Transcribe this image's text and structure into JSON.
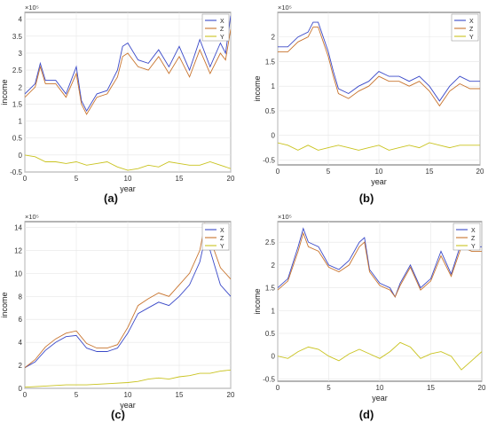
{
  "palette": {
    "X": "#3a49c8",
    "Z": "#c8742e",
    "Y": "#c9c31f",
    "grid": "#e6e6e6",
    "axis": "#444444"
  },
  "chart_data": [
    {
      "type": "line",
      "panel_label": "(a)",
      "xlabel": "year",
      "ylabel": "income",
      "exponent_label": "×10⁵",
      "xlim": [
        0,
        20
      ],
      "ylim": [
        -0.5,
        4.2
      ],
      "xticks": [
        0,
        5,
        10,
        15,
        20
      ],
      "yticks": [
        -0.5,
        0,
        0.5,
        1,
        1.5,
        2,
        2.5,
        3,
        3.5,
        4
      ],
      "ytick_labels": [
        "-0.5",
        "0",
        "0.5",
        "1",
        "1.5",
        "2",
        "2.5",
        "3",
        "3.5",
        "4"
      ],
      "legend": "top-right",
      "series": [
        {
          "name": "X",
          "x": [
            0,
            1,
            1.5,
            2,
            3,
            4,
            5,
            5.5,
            6,
            7,
            8,
            9,
            9.5,
            10,
            11,
            12,
            13,
            14,
            15,
            16,
            17,
            18,
            19,
            19.5,
            20
          ],
          "values": [
            1.8,
            2.1,
            2.7,
            2.2,
            2.2,
            1.8,
            2.6,
            1.6,
            1.3,
            1.8,
            1.9,
            2.5,
            3.2,
            3.3,
            2.8,
            2.7,
            3.1,
            2.6,
            3.2,
            2.5,
            3.4,
            2.6,
            3.3,
            3.0,
            4.1
          ]
        },
        {
          "name": "Z",
          "x": [
            0,
            1,
            1.5,
            2,
            3,
            4,
            5,
            5.5,
            6,
            7,
            8,
            9,
            9.5,
            10,
            11,
            12,
            13,
            14,
            15,
            16,
            17,
            18,
            19,
            19.5,
            20
          ],
          "values": [
            1.7,
            2.0,
            2.6,
            2.1,
            2.1,
            1.7,
            2.4,
            1.5,
            1.2,
            1.7,
            1.8,
            2.3,
            2.9,
            3.0,
            2.6,
            2.5,
            2.9,
            2.4,
            2.9,
            2.3,
            3.1,
            2.4,
            3.0,
            2.8,
            3.7
          ]
        },
        {
          "name": "Y",
          "x": [
            0,
            1,
            2,
            3,
            4,
            5,
            6,
            7,
            8,
            9,
            10,
            11,
            12,
            13,
            14,
            15,
            16,
            17,
            18,
            19,
            20
          ],
          "values": [
            0.0,
            -0.05,
            -0.2,
            -0.2,
            -0.25,
            -0.2,
            -0.3,
            -0.25,
            -0.2,
            -0.35,
            -0.45,
            -0.4,
            -0.3,
            -0.35,
            -0.2,
            -0.25,
            -0.3,
            -0.3,
            -0.2,
            -0.3,
            -0.4
          ]
        }
      ]
    },
    {
      "type": "line",
      "panel_label": "(b)",
      "xlabel": "year",
      "ylabel": "income",
      "exponent_label": "×10⁵",
      "xlim": [
        0,
        20
      ],
      "ylim": [
        -0.6,
        2.5
      ],
      "xticks": [
        0,
        5,
        10,
        15,
        20
      ],
      "yticks": [
        -0.5,
        0,
        0.5,
        1,
        1.5,
        2
      ],
      "ytick_labels": [
        "-0.5",
        "0",
        "0.5",
        "1",
        "1.5",
        "2"
      ],
      "legend": "top-right",
      "series": [
        {
          "name": "X",
          "x": [
            0,
            1,
            2,
            3,
            3.5,
            4,
            5,
            5.5,
            6,
            7,
            8,
            9,
            10,
            11,
            12,
            13,
            14,
            15,
            16,
            17,
            18,
            19,
            20
          ],
          "values": [
            1.8,
            1.8,
            2.0,
            2.1,
            2.3,
            2.3,
            1.7,
            1.3,
            0.95,
            0.85,
            1.0,
            1.1,
            1.3,
            1.2,
            1.2,
            1.1,
            1.2,
            1.0,
            0.7,
            1.0,
            1.2,
            1.1,
            1.1
          ]
        },
        {
          "name": "Z",
          "x": [
            0,
            1,
            2,
            3,
            3.5,
            4,
            5,
            5.5,
            6,
            7,
            8,
            9,
            10,
            11,
            12,
            13,
            14,
            15,
            16,
            17,
            18,
            19,
            20
          ],
          "values": [
            1.7,
            1.7,
            1.9,
            2.0,
            2.2,
            2.2,
            1.6,
            1.2,
            0.85,
            0.75,
            0.9,
            1.0,
            1.2,
            1.1,
            1.1,
            1.0,
            1.1,
            0.9,
            0.6,
            0.9,
            1.05,
            0.95,
            0.95
          ]
        },
        {
          "name": "Y",
          "x": [
            0,
            1,
            2,
            3,
            4,
            5,
            6,
            7,
            8,
            9,
            10,
            11,
            12,
            13,
            14,
            15,
            16,
            17,
            18,
            19,
            20
          ],
          "values": [
            -0.15,
            -0.2,
            -0.3,
            -0.2,
            -0.3,
            -0.25,
            -0.2,
            -0.25,
            -0.3,
            -0.25,
            -0.2,
            -0.3,
            -0.25,
            -0.2,
            -0.25,
            -0.15,
            -0.2,
            -0.25,
            -0.2,
            -0.2,
            -0.2
          ]
        }
      ]
    },
    {
      "type": "line",
      "panel_label": "(c)",
      "xlabel": "year",
      "ylabel": "income",
      "exponent_label": "×10⁵",
      "xlim": [
        0,
        20
      ],
      "ylim": [
        0,
        14.5
      ],
      "xticks": [
        0,
        5,
        10,
        15,
        20
      ],
      "yticks": [
        0,
        2,
        4,
        6,
        8,
        10,
        12,
        14
      ],
      "ytick_labels": [
        "0",
        "2",
        "4",
        "6",
        "8",
        "10",
        "12",
        "14"
      ],
      "legend": "top-right",
      "series": [
        {
          "name": "X",
          "x": [
            0,
            1,
            2,
            3,
            4,
            5,
            6,
            7,
            8,
            9,
            10,
            11,
            12,
            13,
            14,
            15,
            16,
            17,
            17.5,
            18,
            19,
            20
          ],
          "values": [
            1.8,
            2.3,
            3.3,
            4.0,
            4.5,
            4.6,
            3.5,
            3.2,
            3.2,
            3.5,
            4.8,
            6.5,
            7.0,
            7.5,
            7.2,
            8.0,
            9.0,
            11.0,
            13.0,
            12.0,
            9.0,
            8.0
          ]
        },
        {
          "name": "Z",
          "x": [
            0,
            1,
            2,
            3,
            4,
            5,
            6,
            7,
            8,
            9,
            10,
            11,
            12,
            13,
            14,
            15,
            16,
            17,
            17.5,
            18,
            19,
            20
          ],
          "values": [
            1.8,
            2.5,
            3.6,
            4.3,
            4.8,
            5.0,
            3.9,
            3.5,
            3.5,
            3.8,
            5.3,
            7.2,
            7.8,
            8.3,
            8.0,
            9.0,
            10.0,
            12.0,
            14.3,
            13.0,
            10.5,
            9.5
          ]
        },
        {
          "name": "Y",
          "x": [
            0,
            2,
            4,
            6,
            8,
            10,
            11,
            12,
            13,
            14,
            15,
            16,
            17,
            18,
            19,
            20
          ],
          "values": [
            0.1,
            0.2,
            0.3,
            0.3,
            0.4,
            0.5,
            0.6,
            0.8,
            0.9,
            0.8,
            1.0,
            1.1,
            1.3,
            1.3,
            1.5,
            1.6
          ]
        }
      ]
    },
    {
      "type": "line",
      "panel_label": "(d)",
      "xlabel": "year",
      "ylabel": "income",
      "exponent_label": "×10⁵",
      "xlim": [
        0,
        20
      ],
      "ylim": [
        -0.55,
        2.95
      ],
      "xticks": [
        0,
        5,
        10,
        15,
        20
      ],
      "yticks": [
        -0.5,
        0,
        0.5,
        1,
        1.5,
        2,
        2.5
      ],
      "ytick_labels": [
        "-0.5",
        "0",
        "0.5",
        "1",
        "1.5",
        "2",
        "2.5"
      ],
      "legend": "top-right",
      "series": [
        {
          "name": "X",
          "x": [
            0,
            1,
            2,
            2.5,
            3,
            4,
            5,
            6,
            7,
            8,
            8.5,
            9,
            10,
            11,
            11.5,
            12,
            13,
            14,
            15,
            16,
            17,
            18,
            19,
            20
          ],
          "values": [
            1.5,
            1.7,
            2.4,
            2.8,
            2.5,
            2.4,
            2.0,
            1.9,
            2.1,
            2.5,
            2.6,
            1.9,
            1.6,
            1.5,
            1.3,
            1.6,
            2.0,
            1.5,
            1.7,
            2.3,
            1.8,
            2.5,
            2.4,
            2.4
          ]
        },
        {
          "name": "Z",
          "x": [
            0,
            1,
            2,
            2.5,
            3,
            4,
            5,
            6,
            7,
            8,
            8.5,
            9,
            10,
            11,
            11.5,
            12,
            13,
            14,
            15,
            16,
            17,
            18,
            19,
            20
          ],
          "values": [
            1.45,
            1.65,
            2.3,
            2.7,
            2.4,
            2.3,
            1.95,
            1.85,
            2.0,
            2.4,
            2.5,
            1.85,
            1.55,
            1.45,
            1.3,
            1.55,
            1.95,
            1.45,
            1.65,
            2.2,
            1.75,
            2.4,
            2.3,
            2.3
          ]
        },
        {
          "name": "Y",
          "x": [
            0,
            1,
            2,
            3,
            4,
            5,
            6,
            7,
            8,
            9,
            10,
            11,
            12,
            13,
            14,
            15,
            16,
            17,
            18,
            19,
            20
          ],
          "values": [
            0.0,
            -0.05,
            0.1,
            0.2,
            0.15,
            0.0,
            -0.1,
            0.05,
            0.15,
            0.05,
            -0.05,
            0.1,
            0.3,
            0.2,
            -0.05,
            0.05,
            0.1,
            0.0,
            -0.3,
            -0.1,
            0.1
          ]
        }
      ]
    }
  ]
}
